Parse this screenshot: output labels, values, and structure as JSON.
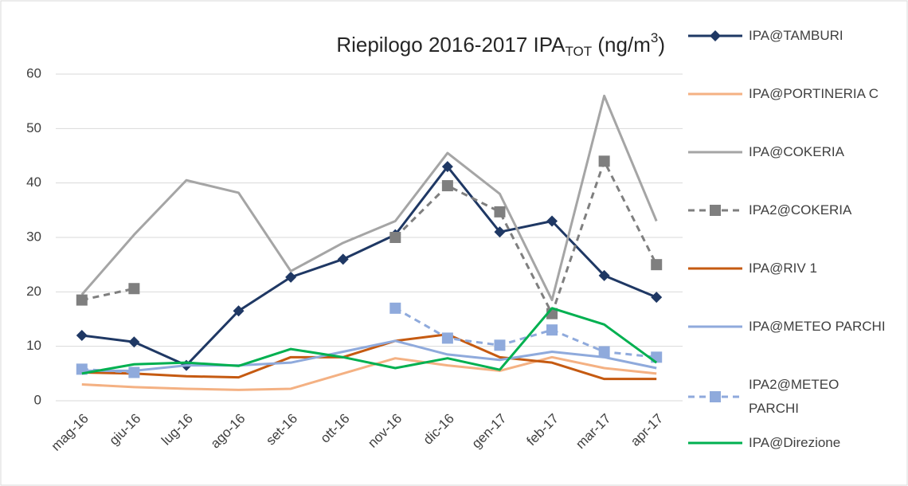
{
  "chart_data": {
    "type": "line",
    "title": [
      "Riepilogo 2016-2017 IPA",
      "TOT",
      " (ng/m",
      "3",
      ")"
    ],
    "categories": [
      "mag-16",
      "giu-16",
      "lug-16",
      "ago-16",
      "set-16",
      "ott-16",
      "nov-16",
      "dic-16",
      "gen-17",
      "feb-17",
      "mar-17",
      "apr-17"
    ],
    "ylim": [
      0,
      60
    ],
    "yticks": [
      0,
      10,
      20,
      30,
      40,
      50,
      60
    ],
    "grid": true,
    "legend": "right",
    "series": [
      {
        "name": "IPA@TAMBURI",
        "color": "#1f3864",
        "marker": "diamond",
        "dash": false,
        "values": [
          12,
          10.8,
          6.5,
          16.5,
          22.7,
          26,
          30.5,
          43,
          31,
          33,
          23,
          19
        ]
      },
      {
        "name": "IPA@PORTINERIA C",
        "color": "#f4b183",
        "marker": "none",
        "dash": false,
        "values": [
          3,
          2.5,
          2.2,
          2,
          2.2,
          5,
          7.8,
          6.5,
          5.5,
          8,
          6,
          5
        ]
      },
      {
        "name": "IPA@COKERIA",
        "color": "#a5a5a5",
        "marker": "none",
        "dash": false,
        "values": [
          19.5,
          30.5,
          40.5,
          38.2,
          23.8,
          29,
          33,
          45.5,
          38,
          18.5,
          56,
          33
        ]
      },
      {
        "name": "IPA2@COKERIA",
        "color": "#7f7f7f",
        "marker": "square",
        "dash": true,
        "values": [
          18.5,
          20.6,
          null,
          null,
          null,
          null,
          30,
          39.5,
          34.7,
          16,
          44,
          25
        ]
      },
      {
        "name": "IPA@RIV 1",
        "color": "#c55a11",
        "marker": "none",
        "dash": false,
        "values": [
          5.2,
          5,
          4.5,
          4.3,
          8,
          8,
          11,
          12.2,
          8,
          7,
          4,
          4
        ]
      },
      {
        "name": "IPA@METEO PARCHI",
        "color": "#8faadc",
        "marker": "none",
        "dash": false,
        "values": [
          5.5,
          5.5,
          6.5,
          6.5,
          7,
          9,
          11,
          8.5,
          7.5,
          9,
          8,
          6
        ]
      },
      {
        "name": "IPA2@METEO PARCHI",
        "color": "#8faadc",
        "marker": "square",
        "dash": true,
        "values": [
          5.8,
          5.2,
          null,
          null,
          null,
          null,
          17,
          11.5,
          10.2,
          13,
          9,
          8
        ]
      },
      {
        "name": "IPA@Direzione",
        "color": "#00b050",
        "marker": "none",
        "dash": false,
        "values": [
          5,
          6.7,
          7,
          6.4,
          9.5,
          8,
          6,
          7.8,
          5.7,
          17,
          14,
          7
        ]
      }
    ]
  }
}
